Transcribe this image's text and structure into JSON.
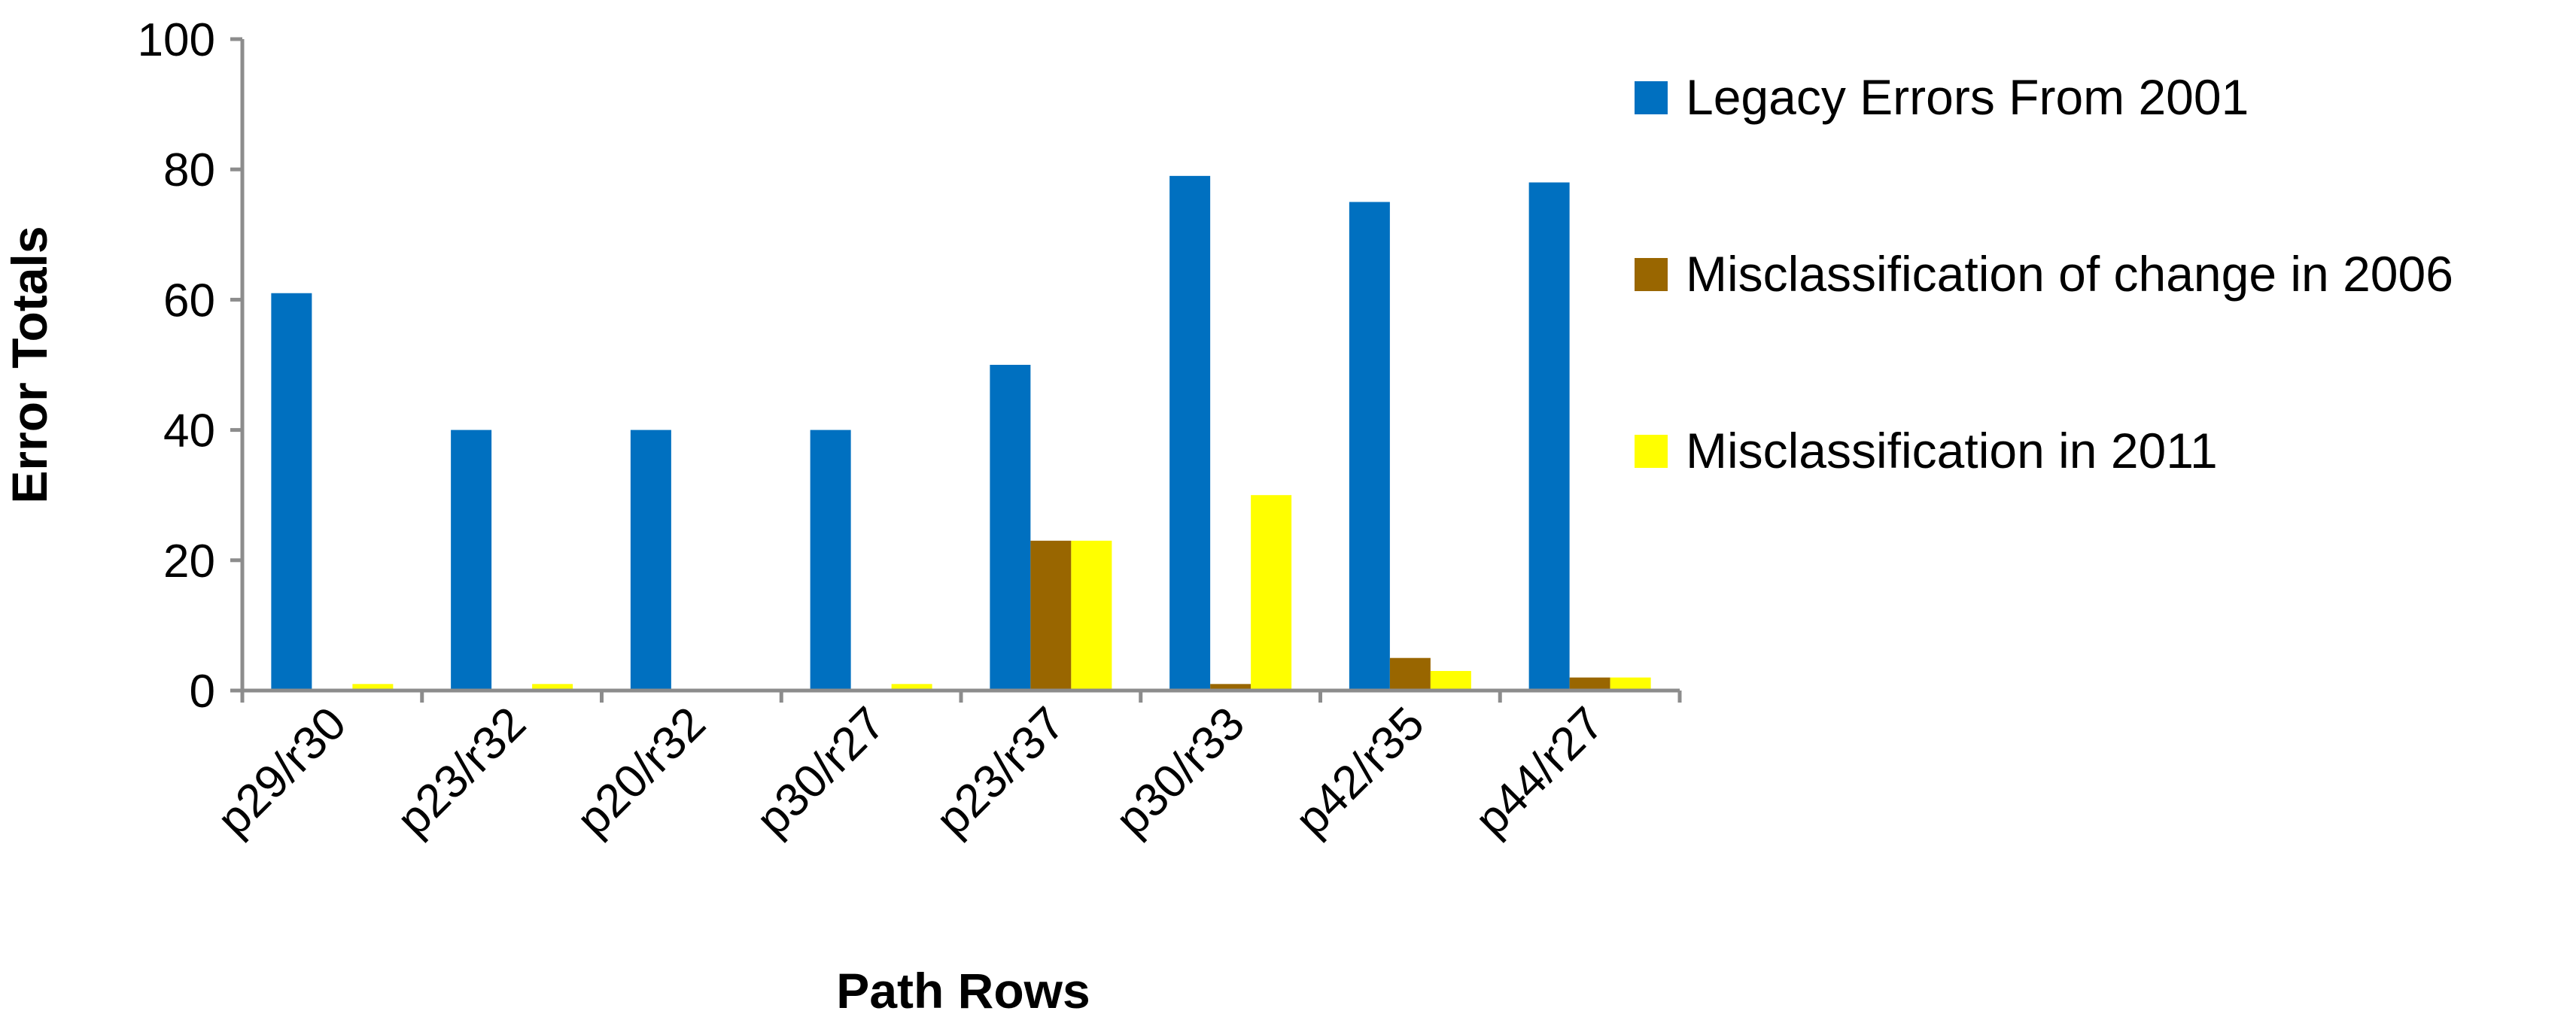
{
  "chart_data": {
    "type": "bar",
    "title": "",
    "xlabel": "Path Rows",
    "ylabel": "Error Totals",
    "ylim": [
      0,
      100
    ],
    "yticks": [
      0,
      20,
      40,
      60,
      80,
      100
    ],
    "ytick_labels": [
      "0",
      "20",
      "40",
      "60",
      "80",
      "100"
    ],
    "grid": false,
    "legend_position": "right",
    "categories": [
      "p29/r30",
      "p23/r32",
      "p20/r32",
      "p30/r27",
      "p23/r37",
      "p30/r33",
      "p42/r35",
      "p44/r27"
    ],
    "series": [
      {
        "name": "Legacy Errors From 2001",
        "color": "#0070C0",
        "values": [
          61,
          40,
          40,
          40,
          50,
          79,
          75,
          78
        ]
      },
      {
        "name": "Misclassification of change in 2006",
        "color": "#996600",
        "values": [
          0,
          0,
          0,
          0,
          23,
          1,
          5,
          2
        ]
      },
      {
        "name": "Misclassification in 2011",
        "color": "#FFFF00",
        "values": [
          1,
          1,
          0,
          1,
          23,
          30,
          3,
          2
        ]
      }
    ]
  }
}
